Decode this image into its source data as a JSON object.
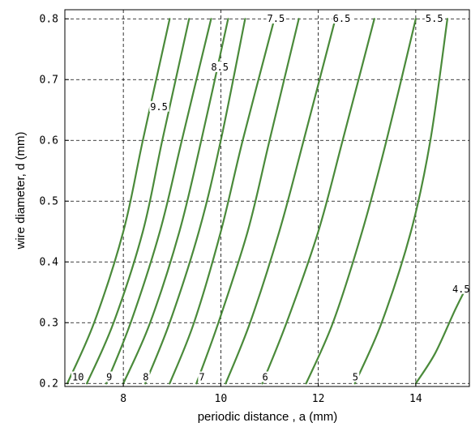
{
  "chart_data": {
    "type": "line",
    "title": "",
    "xlabel": "periodic distance , a (mm)",
    "ylabel": "wire diameter, d (mm)",
    "xlim": [
      6.8,
      15.1
    ],
    "ylim": [
      0.195,
      0.815
    ],
    "x_ticks": [
      "8",
      "10",
      "12",
      "14"
    ],
    "y_ticks": [
      "0.2",
      "0.3",
      "0.4",
      "0.5",
      "0.6",
      "0.7",
      "0.8"
    ],
    "grid": true,
    "legend": "none",
    "line_color": "#4a8a3a",
    "series": [
      {
        "label": "10",
        "x": [
          6.85,
          7.4,
          8.0,
          8.4,
          8.95
        ],
        "y": [
          0.2,
          0.3,
          0.45,
          0.6,
          0.8
        ]
      },
      {
        "label": "9.5",
        "x": [
          7.25,
          7.8,
          8.4,
          8.8,
          9.35
        ],
        "y": [
          0.2,
          0.3,
          0.45,
          0.6,
          0.8
        ]
      },
      {
        "label": "9",
        "x": [
          7.65,
          8.15,
          8.75,
          9.2,
          9.8
        ],
        "y": [
          0.2,
          0.3,
          0.45,
          0.6,
          0.8
        ]
      },
      {
        "label": "8.5",
        "x": [
          8.0,
          8.55,
          9.15,
          9.6,
          10.15
        ],
        "y": [
          0.2,
          0.3,
          0.45,
          0.6,
          0.8
        ]
      },
      {
        "label": "8",
        "x": [
          8.45,
          8.95,
          9.55,
          10.0,
          10.5
        ],
        "y": [
          0.2,
          0.3,
          0.45,
          0.6,
          0.8
        ]
      },
      {
        "label": "7.5",
        "x": [
          8.95,
          9.45,
          10.0,
          10.45,
          11.1
        ],
        "y": [
          0.2,
          0.3,
          0.45,
          0.6,
          0.8
        ]
      },
      {
        "label": "7",
        "x": [
          9.5,
          9.95,
          10.55,
          11.0,
          11.6
        ],
        "y": [
          0.2,
          0.3,
          0.45,
          0.6,
          0.8
        ]
      },
      {
        "label": "6.5",
        "x": [
          10.1,
          10.6,
          11.2,
          11.7,
          12.35
        ],
        "y": [
          0.2,
          0.3,
          0.45,
          0.6,
          0.8
        ]
      },
      {
        "label": "6",
        "x": [
          10.85,
          11.35,
          12.0,
          12.5,
          13.15
        ],
        "y": [
          0.2,
          0.3,
          0.45,
          0.6,
          0.8
        ]
      },
      {
        "label": "5.5",
        "x": [
          11.75,
          12.3,
          12.9,
          13.4,
          14.0
        ],
        "y": [
          0.2,
          0.3,
          0.45,
          0.6,
          0.8
        ]
      },
      {
        "label": "5",
        "x": [
          12.75,
          13.3,
          13.9,
          14.3,
          14.65
        ],
        "y": [
          0.2,
          0.3,
          0.45,
          0.6,
          0.8
        ]
      },
      {
        "label": "4.5",
        "x": [
          14.0,
          14.4,
          14.8,
          15.05
        ],
        "y": [
          0.2,
          0.25,
          0.32,
          0.36
        ]
      }
    ],
    "visible_curve_labels": [
      {
        "text": "10",
        "x": 6.95,
        "y": 0.205
      },
      {
        "text": "9",
        "x": 7.65,
        "y": 0.205
      },
      {
        "text": "8",
        "x": 8.4,
        "y": 0.205
      },
      {
        "text": "7",
        "x": 9.55,
        "y": 0.205
      },
      {
        "text": "6",
        "x": 10.85,
        "y": 0.205
      },
      {
        "text": "5",
        "x": 12.7,
        "y": 0.205
      },
      {
        "text": "9.5",
        "x": 8.55,
        "y": 0.65
      },
      {
        "text": "8.5",
        "x": 9.8,
        "y": 0.715
      },
      {
        "text": "7.5",
        "x": 10.95,
        "y": 0.795
      },
      {
        "text": "6.5",
        "x": 12.3,
        "y": 0.795
      },
      {
        "text": "5.5",
        "x": 14.2,
        "y": 0.795
      },
      {
        "text": "4.5",
        "x": 14.75,
        "y": 0.35
      }
    ]
  }
}
